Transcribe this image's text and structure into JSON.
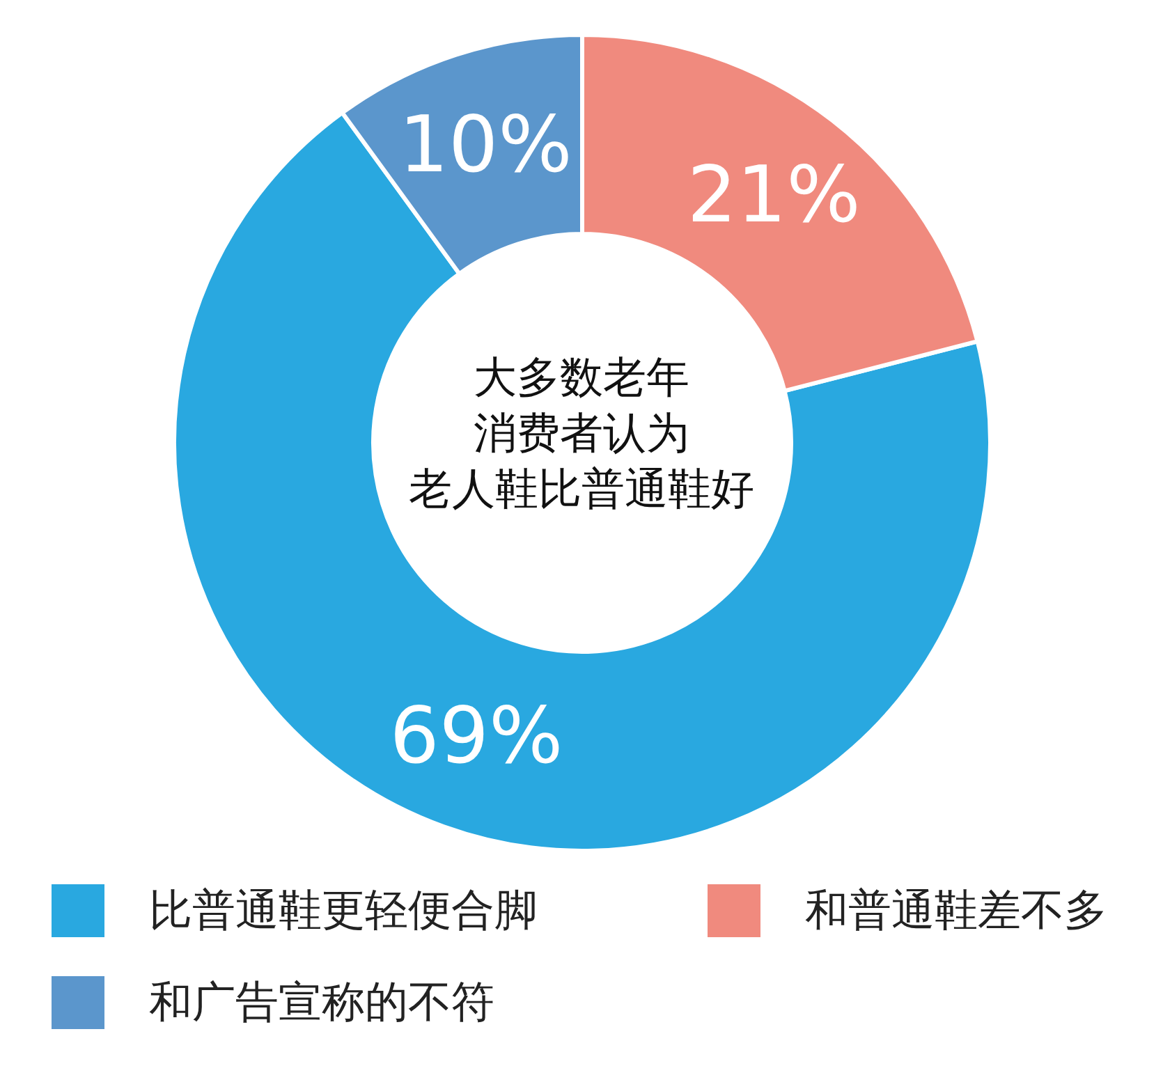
{
  "chart_data": {
    "type": "donut",
    "categories": [
      "比普通鞋更轻便合脚",
      "和普通鞋差不多",
      "和广告宣称的不符"
    ],
    "values": [
      69,
      21,
      10
    ],
    "colors": [
      "#29a8e0",
      "#f08a7e",
      "#5b96cc"
    ],
    "value_labels": [
      "69%",
      "21%",
      "10%"
    ],
    "annotations": [
      "大多数老年",
      "消费者认为",
      "老人鞋比普通鞋好"
    ],
    "legend": "bottom left"
  }
}
